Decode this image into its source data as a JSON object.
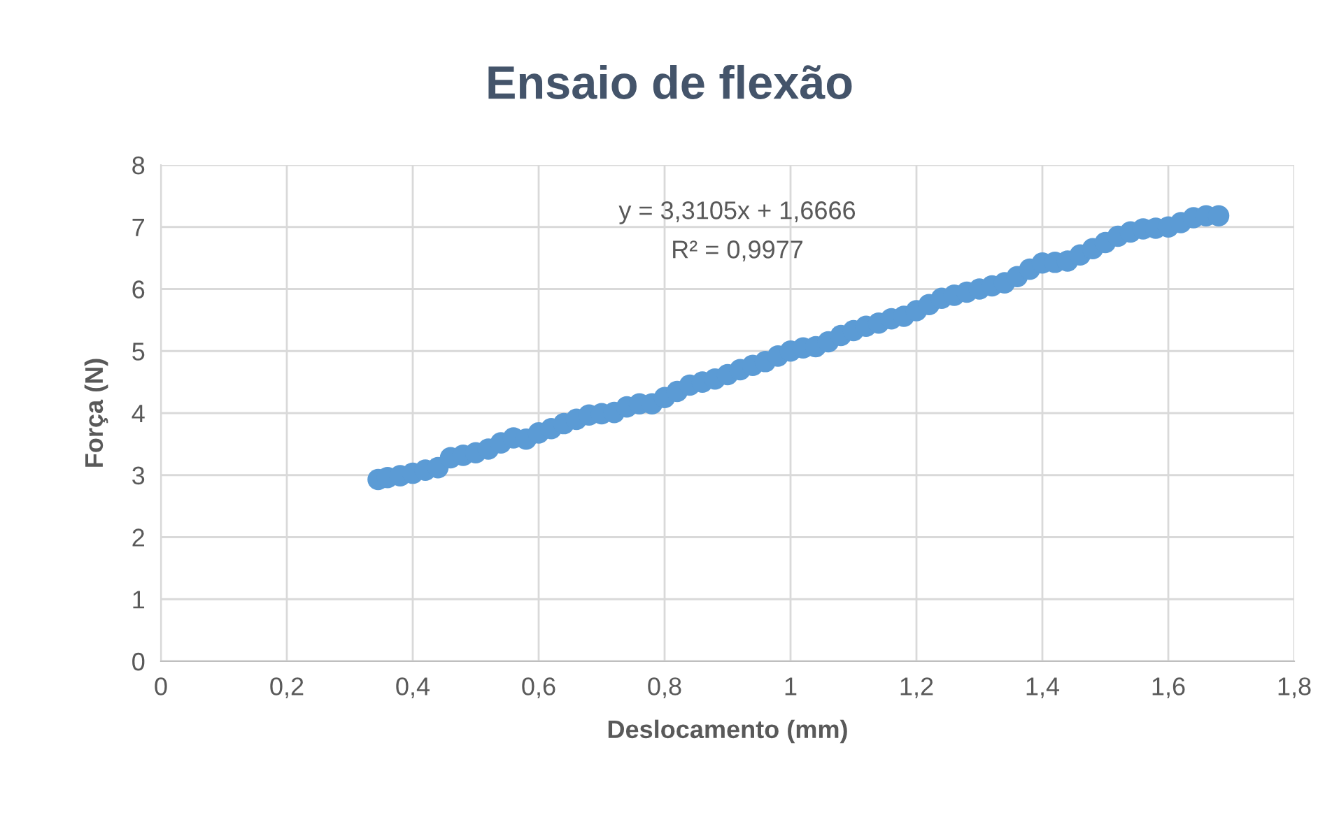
{
  "chart_data": {
    "type": "scatter",
    "title": "Ensaio de flexão",
    "xlabel": "Deslocamento (mm)",
    "ylabel": "Força (N)",
    "annotations": [
      "y = 3,3105x + 1,6666",
      "R² = 0,9977"
    ],
    "x": [
      0.345,
      0.36,
      0.38,
      0.4,
      0.42,
      0.44,
      0.46,
      0.48,
      0.5,
      0.52,
      0.54,
      0.56,
      0.58,
      0.6,
      0.62,
      0.64,
      0.66,
      0.68,
      0.7,
      0.72,
      0.74,
      0.76,
      0.78,
      0.8,
      0.82,
      0.84,
      0.86,
      0.88,
      0.9,
      0.92,
      0.94,
      0.96,
      0.98,
      1.0,
      1.02,
      1.04,
      1.06,
      1.08,
      1.1,
      1.12,
      1.14,
      1.16,
      1.18,
      1.2,
      1.22,
      1.24,
      1.26,
      1.28,
      1.3,
      1.32,
      1.34,
      1.36,
      1.38,
      1.4,
      1.42,
      1.44,
      1.46,
      1.48,
      1.5,
      1.52,
      1.54,
      1.56,
      1.58,
      1.6,
      1.62,
      1.64,
      1.66,
      1.68
    ],
    "series": [
      {
        "color": "#5b9bd5",
        "values": [
          2.93,
          2.96,
          2.99,
          3.03,
          3.08,
          3.12,
          3.28,
          3.32,
          3.36,
          3.42,
          3.52,
          3.6,
          3.58,
          3.68,
          3.75,
          3.83,
          3.9,
          3.97,
          3.99,
          4.01,
          4.1,
          4.15,
          4.15,
          4.25,
          4.35,
          4.45,
          4.5,
          4.55,
          4.62,
          4.7,
          4.77,
          4.83,
          4.92,
          5.0,
          5.05,
          5.07,
          5.15,
          5.25,
          5.33,
          5.4,
          5.45,
          5.52,
          5.56,
          5.65,
          5.75,
          5.85,
          5.9,
          5.95,
          6.0,
          6.05,
          6.1,
          6.2,
          6.32,
          6.42,
          6.43,
          6.45,
          6.55,
          6.65,
          6.75,
          6.85,
          6.92,
          6.97,
          6.98,
          7.0,
          7.07,
          7.15,
          7.18,
          7.18
        ]
      }
    ],
    "xlim": [
      0,
      1.8
    ],
    "xticks": [
      {
        "value": 0,
        "label": "0"
      },
      {
        "value": 0.2,
        "label": "0,2"
      },
      {
        "value": 0.4,
        "label": "0,4"
      },
      {
        "value": 0.6,
        "label": "0,6"
      },
      {
        "value": 0.8,
        "label": "0,8"
      },
      {
        "value": 1,
        "label": "1"
      },
      {
        "value": 1.2,
        "label": "1,2"
      },
      {
        "value": 1.4,
        "label": "1,4"
      },
      {
        "value": 1.6,
        "label": "1,6"
      },
      {
        "value": 1.8,
        "label": "1,8"
      }
    ],
    "ylim": [
      0,
      8
    ],
    "yticks": [
      0,
      1,
      2,
      3,
      4,
      5,
      6,
      7,
      8
    ],
    "grid": true,
    "marker": "circle"
  }
}
